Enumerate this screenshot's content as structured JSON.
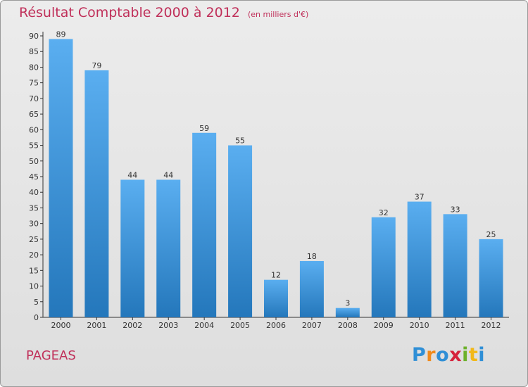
{
  "title": "Résultat Comptable 2000 à 2012",
  "subtitle": "(en milliers d'€)",
  "commune": "PAGEAS",
  "logo": {
    "letters": [
      "P",
      "r",
      "o",
      "x",
      "i",
      "t",
      "i"
    ],
    "colors": [
      "#2f8fd6",
      "#f08a1c",
      "#2f8fd6",
      "#d6223c",
      "#6cb12a",
      "#f2b818",
      "#2f8fd6"
    ]
  },
  "colors": {
    "title": "#c0305a",
    "bar_light": "#5aaef0",
    "bar_dark": "#2477bb",
    "axis": "#333333"
  },
  "chart_data": {
    "type": "bar",
    "categories": [
      "2000",
      "2001",
      "2002",
      "2003",
      "2004",
      "2005",
      "2006",
      "2007",
      "2008",
      "2009",
      "2010",
      "2011",
      "2012"
    ],
    "values": [
      89,
      79,
      44,
      44,
      59,
      55,
      12,
      18,
      3,
      32,
      37,
      33,
      25
    ],
    "ylim": [
      0,
      90
    ],
    "yticks": [
      0,
      5,
      10,
      15,
      20,
      25,
      30,
      35,
      40,
      45,
      50,
      55,
      60,
      65,
      70,
      75,
      80,
      85,
      90
    ],
    "grid": false,
    "data_labels": true
  }
}
